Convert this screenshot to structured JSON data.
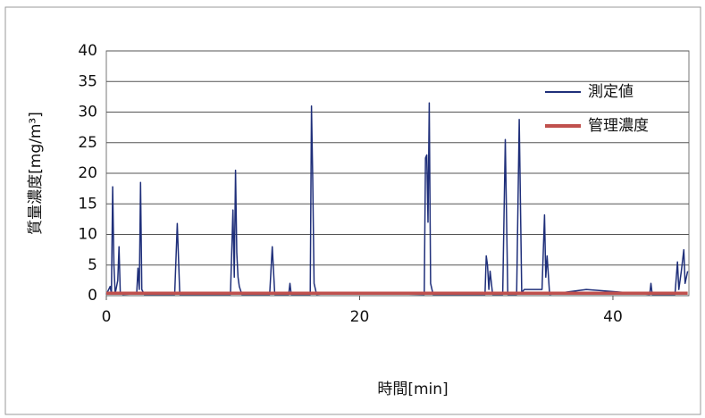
{
  "chart_data": {
    "type": "line",
    "x": [
      0,
      0.3,
      0.4,
      0.5,
      0.6,
      0.7,
      0.9,
      1.0,
      1.1,
      1.3,
      2.4,
      2.5,
      2.6,
      2.7,
      2.8,
      3.0,
      5.4,
      5.6,
      5.8,
      9.8,
      9.9,
      10.0,
      10.1,
      10.2,
      10.3,
      10.4,
      10.5,
      10.7,
      12.9,
      13.1,
      13.3,
      14.4,
      14.5,
      14.6,
      16.1,
      16.2,
      16.3,
      16.4,
      16.6,
      18.2,
      25.1,
      25.2,
      25.3,
      25.4,
      25.5,
      25.6,
      25.8,
      29.9,
      30.0,
      30.1,
      30.2,
      30.3,
      30.5,
      31.3,
      31.5,
      31.7,
      32.4,
      32.6,
      32.8,
      33.0,
      34.4,
      34.6,
      34.7,
      34.8,
      35.0,
      37.9,
      42.9,
      43.0,
      43.1,
      44.9,
      45.1,
      45.2,
      45.4,
      45.6,
      45.7,
      45.9
    ],
    "series": [
      {
        "name": "測定値",
        "color": "#1f2f7a",
        "values": [
          0.2,
          1.5,
          0.3,
          17.8,
          5,
          0.3,
          2.5,
          8,
          0.5,
          0.2,
          0.3,
          4.5,
          1,
          18.5,
          1,
          0.2,
          0.2,
          11.8,
          0.2,
          0.2,
          7,
          14,
          3,
          20.5,
          7,
          3,
          1.5,
          0.2,
          0.2,
          8,
          0.2,
          0.2,
          2,
          0.2,
          0.2,
          31,
          19,
          2,
          0.2,
          0.5,
          0.2,
          22.5,
          23,
          12,
          31.5,
          2,
          0.2,
          0.2,
          6.5,
          5,
          1,
          4,
          0.2,
          0.2,
          25.5,
          0.2,
          0.2,
          28.8,
          0.5,
          1,
          1,
          13.2,
          3,
          6.5,
          0.2,
          1,
          0.2,
          2,
          0.2,
          0.2,
          5.5,
          1,
          4,
          7.5,
          2,
          4
        ]
      },
      {
        "name": "管理濃度",
        "color": "#c0504d",
        "values": [
          0.4,
          0.4,
          0.4,
          0.4,
          0.4,
          0.4,
          0.4,
          0.4,
          0.4,
          0.4,
          0.4,
          0.4,
          0.4,
          0.4,
          0.4,
          0.4,
          0.4,
          0.4,
          0.4,
          0.4,
          0.4,
          0.4,
          0.4,
          0.4,
          0.4,
          0.4,
          0.4,
          0.4,
          0.4,
          0.4,
          0.4,
          0.4,
          0.4,
          0.4,
          0.4,
          0.4,
          0.4,
          0.4,
          0.4,
          0.4,
          0.4,
          0.4,
          0.4,
          0.4,
          0.4,
          0.4,
          0.4,
          0.4,
          0.4,
          0.4,
          0.4,
          0.4,
          0.4,
          0.4,
          0.4,
          0.4,
          0.4,
          0.4,
          0.4,
          0.4,
          0.4,
          0.4,
          0.4,
          0.4,
          0.4,
          0.4,
          0.4,
          0.4,
          0.4,
          0.4,
          0.4,
          0.4,
          0.4,
          0.4,
          0.4,
          0.4
        ]
      }
    ],
    "xlabel": "時間[min]",
    "ylabel": "質量濃度[mg/m³]",
    "xlim": [
      0,
      46
    ],
    "xticks": [
      0,
      20,
      40
    ],
    "ylim": [
      0,
      40
    ],
    "yticks": [
      0,
      5,
      10,
      15,
      20,
      25,
      30,
      35,
      40
    ],
    "grid": true,
    "legend": "upper right"
  }
}
